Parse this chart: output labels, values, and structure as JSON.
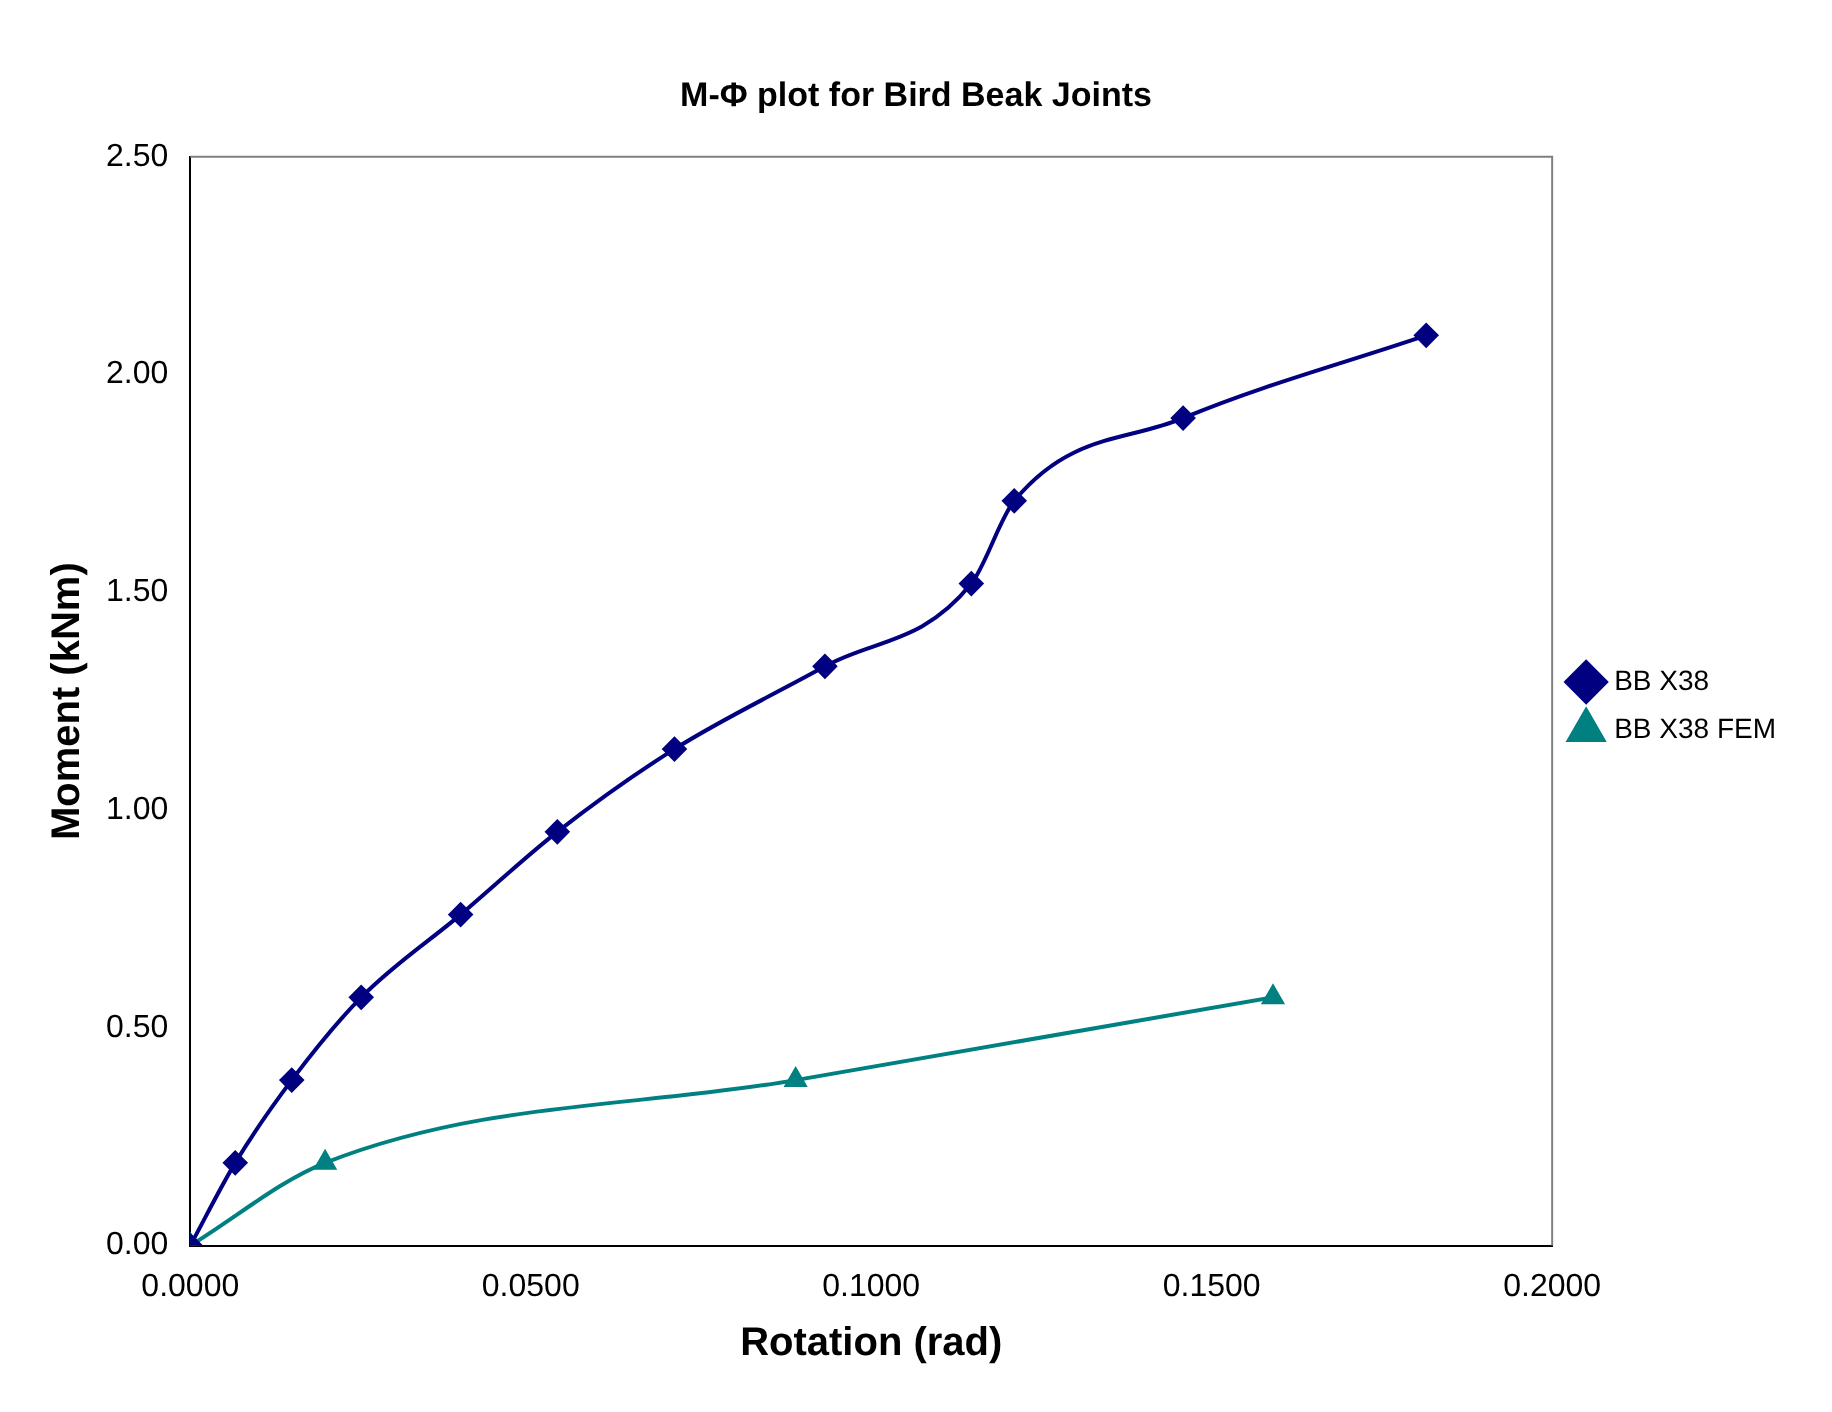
{
  "chart_data": {
    "type": "line",
    "title": "M-Φ plot for Bird Beak Joints",
    "xlabel": "Rotation (rad)",
    "ylabel": "Moment (kNm)",
    "xlim": [
      0,
      0.2
    ],
    "xticks": [
      {
        "value": 0,
        "label": "0.0000"
      },
      {
        "value": 0.05,
        "label": "0.0500"
      },
      {
        "value": 0.1,
        "label": "0.1000"
      },
      {
        "value": 0.15,
        "label": "0.1500"
      },
      {
        "value": 0.2,
        "label": "0.2000"
      }
    ],
    "ylim": [
      0,
      2.5
    ],
    "yticks": [
      {
        "value": 0,
        "label": "0.00"
      },
      {
        "value": 0.5,
        "label": "0.50"
      },
      {
        "value": 1,
        "label": "1.00"
      },
      {
        "value": 1.5,
        "label": "1.50"
      },
      {
        "value": 2,
        "label": "2.00"
      },
      {
        "value": 2.5,
        "label": "2.50"
      }
    ],
    "grid": false,
    "legend": "right",
    "series": [
      {
        "name": "BB X38",
        "color": "#000080",
        "marker": "diamond",
        "x": [
          0,
          0.0066,
          0.0149,
          0.0251,
          0.0397,
          0.0539,
          0.0711,
          0.0932,
          0.1147,
          0.121,
          0.1458,
          0.1815
        ],
        "values": [
          0,
          0.19,
          0.38,
          0.57,
          0.76,
          0.95,
          1.14,
          1.33,
          1.52,
          1.71,
          1.9,
          2.09
        ]
      },
      {
        "name": "BB X38 FEM",
        "color": "#008080",
        "marker": "triangle",
        "x": [
          0,
          0.0198,
          0.0889,
          0.159
        ],
        "values": [
          0,
          0.19,
          0.38,
          0.57
        ]
      }
    ]
  }
}
